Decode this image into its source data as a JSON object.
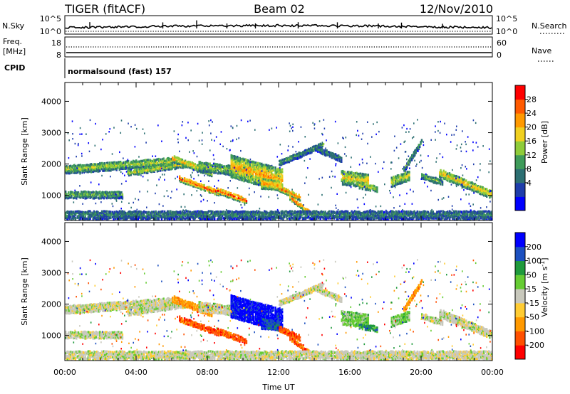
{
  "header": {
    "station": "TIGER (fitACF)",
    "beam": "Beam 02",
    "date": "12/Nov/2010"
  },
  "top_panels": {
    "nsky_label": "N.Sky",
    "nsky_ticks": [
      "10^5",
      "10^0"
    ],
    "nsearch_label": "N.Search",
    "nsearch_ticks": [
      "10^5",
      "10^0"
    ],
    "freq_label": "Freq.",
    "freq_unit": "[MHz]",
    "freq_ticks": [
      "18",
      "8"
    ],
    "nave_label": "Nave",
    "nave_ticks": [
      "60",
      "0"
    ],
    "cpid_label": "CPID",
    "cpid_text": "normalsound (fast) 157"
  },
  "chart_data": [
    {
      "type": "heatmap",
      "name": "power",
      "ylabel": "Slant Range [km]",
      "yticks": [
        "4000",
        "3000",
        "2000",
        "1000"
      ],
      "ylim": [
        200,
        4600
      ],
      "xlim": [
        0,
        24
      ],
      "colorbar": {
        "label": "Power [dB]",
        "ticks": [
          "28",
          "24",
          "20",
          "16",
          "12",
          "8",
          "4"
        ],
        "colors": [
          "#0000ff",
          "#1e3dab",
          "#2c6f72",
          "#3f9b5a",
          "#8fcc3a",
          "#f0d020",
          "#ff9900",
          "#ff5a00",
          "#ff0000"
        ]
      }
    },
    {
      "type": "heatmap",
      "name": "velocity",
      "ylabel": "Slant Range [km]",
      "yticks": [
        "4000",
        "3000",
        "2000",
        "1000"
      ],
      "ylim": [
        200,
        4600
      ],
      "xlim": [
        0,
        24
      ],
      "xlabel": "Time UT",
      "xticks": [
        "00:00",
        "04:00",
        "08:00",
        "12:00",
        "16:00",
        "20:00",
        "00:00"
      ],
      "colorbar": {
        "label": "Velocity [m s",
        "label_sup": "-1",
        "label_end": "]",
        "ticks": [
          "200",
          "100",
          "50",
          "15",
          "-15",
          "-50",
          "-100",
          "-200"
        ],
        "colors": [
          "#ff0000",
          "#ff5000",
          "#ff9900",
          "#ffcc33",
          "#c8c8bc",
          "#66cc33",
          "#1f9a3c",
          "#1c50c0",
          "#0000ff"
        ]
      }
    }
  ]
}
